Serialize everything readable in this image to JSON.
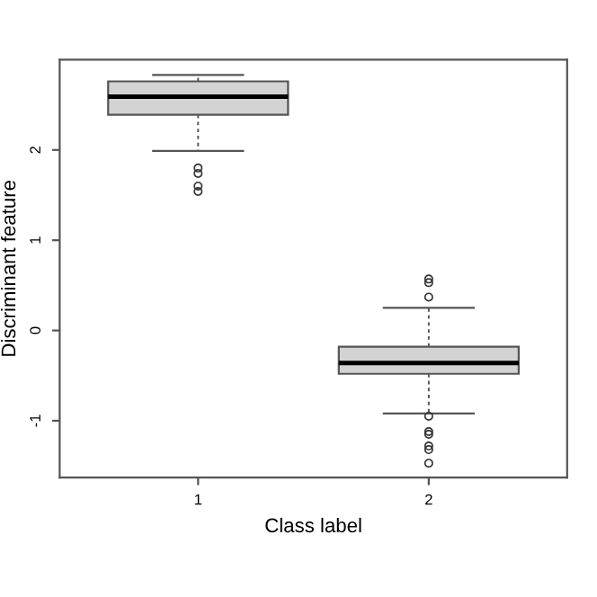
{
  "chart_data": {
    "type": "box",
    "xlabel": "Class label",
    "ylabel": "Discriminant feature",
    "categories": [
      "1",
      "2"
    ],
    "color": "#d3d3d3",
    "boxes": [
      {
        "low": 1.99,
        "q1": 2.39,
        "median": 2.59,
        "q3": 2.76,
        "high": 2.83,
        "outliers": [
          1.8,
          1.74,
          1.6,
          1.54
        ]
      },
      {
        "low": -0.92,
        "q1": -0.48,
        "median": -0.36,
        "q3": -0.18,
        "high": 0.25,
        "outliers": [
          0.57,
          0.53,
          0.37,
          -0.95,
          -1.12,
          -1.15,
          -1.28,
          -1.32,
          -1.47
        ]
      }
    ],
    "ylim": [
      -1.63,
      3.0
    ],
    "yticks": [
      -1,
      0,
      1,
      2
    ],
    "grid": false,
    "legend": false
  }
}
